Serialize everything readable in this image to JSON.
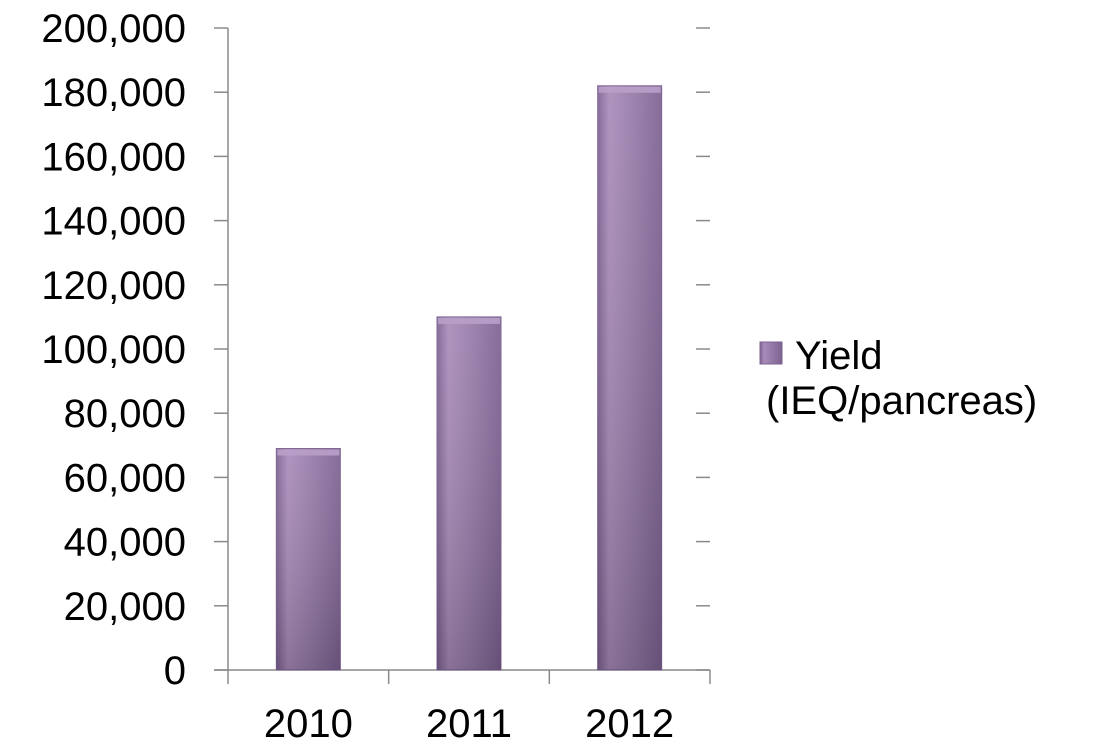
{
  "chart_data": {
    "type": "bar",
    "categories": [
      "2010",
      "2011",
      "2012"
    ],
    "series": [
      {
        "name_lines": [
          "Yield",
          "(IEQ/pancreas)"
        ],
        "values": [
          69000,
          110000,
          182000
        ]
      }
    ],
    "ylim": [
      0,
      200000
    ],
    "y_ticks": [
      "0",
      "20,000",
      "40,000",
      "60,000",
      "80,000",
      "100,000",
      "120,000",
      "140,000",
      "160,000",
      "180,000",
      "200,000"
    ],
    "grid": "none",
    "legend_position": "right",
    "colors": {
      "bar_light": "#a88bb9",
      "bar_mid": "#957aa8",
      "bar_dark": "#7c6191",
      "bar_top": "#b9a0c9",
      "axis": "#8a8a8a"
    }
  }
}
